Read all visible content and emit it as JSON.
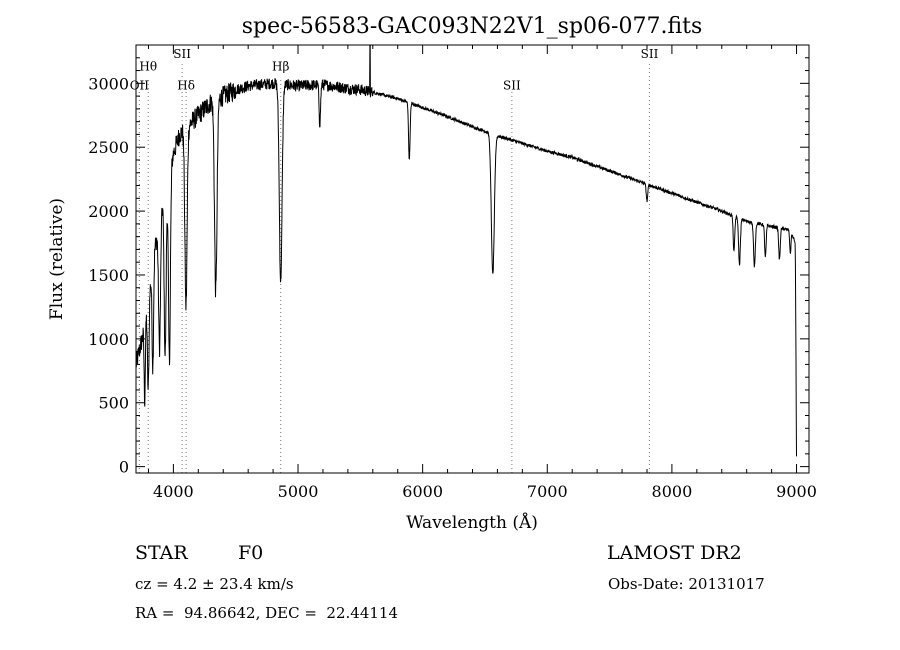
{
  "chart_data": {
    "type": "line",
    "title": "spec-56583-GAC093N22V1_sp06-077.fits",
    "xlabel": "Wavelength (Å)",
    "ylabel": "Flux (relative)",
    "xlim": [
      3700,
      9100
    ],
    "ylim": [
      -50,
      3300
    ],
    "xticks": [
      4000,
      5000,
      6000,
      7000,
      8000,
      9000
    ],
    "yticks": [
      0,
      500,
      1000,
      1500,
      2000,
      2500,
      3000
    ],
    "grid": false,
    "continuum": [
      [
        3700,
        800
      ],
      [
        3750,
        1000
      ],
      [
        3800,
        1300
      ],
      [
        3850,
        1700
      ],
      [
        3900,
        2000
      ],
      [
        3950,
        2250
      ],
      [
        4000,
        2450
      ],
      [
        4050,
        2600
      ],
      [
        4100,
        2650
      ],
      [
        4200,
        2750
      ],
      [
        4300,
        2850
      ],
      [
        4400,
        2900
      ],
      [
        4500,
        2950
      ],
      [
        4600,
        2980
      ],
      [
        4700,
        2990
      ],
      [
        4800,
        3000
      ],
      [
        5000,
        2980
      ],
      [
        5200,
        2990
      ],
      [
        5400,
        2960
      ],
      [
        5500,
        2950
      ],
      [
        5600,
        2930
      ],
      [
        5800,
        2880
      ],
      [
        6000,
        2810
      ],
      [
        6200,
        2740
      ],
      [
        6400,
        2660
      ],
      [
        6600,
        2590
      ],
      [
        6800,
        2530
      ],
      [
        7000,
        2470
      ],
      [
        7200,
        2420
      ],
      [
        7400,
        2350
      ],
      [
        7600,
        2280
      ],
      [
        7800,
        2210
      ],
      [
        8000,
        2140
      ],
      [
        8200,
        2070
      ],
      [
        8400,
        2000
      ],
      [
        8600,
        1920
      ],
      [
        8800,
        1880
      ],
      [
        8950,
        1850
      ],
      [
        8990,
        1750
      ],
      [
        9000,
        80
      ]
    ],
    "absorption_lines": [
      {
        "center": 3770,
        "depth": 600,
        "width": 5
      },
      {
        "center": 3798,
        "depth": 700,
        "width": 6
      },
      {
        "center": 3835,
        "depth": 800,
        "width": 6
      },
      {
        "center": 3889,
        "depth": 1000,
        "width": 8
      },
      {
        "center": 3934,
        "depth": 1300,
        "width": 8
      },
      {
        "center": 3968,
        "depth": 1500,
        "width": 8
      },
      {
        "center": 4101,
        "depth": 1400,
        "width": 9
      },
      {
        "center": 4340,
        "depth": 1500,
        "width": 10
      },
      {
        "center": 4861,
        "depth": 1550,
        "width": 11
      },
      {
        "center": 5175,
        "depth": 300,
        "width": 6
      },
      {
        "center": 5893,
        "depth": 450,
        "width": 6
      },
      {
        "center": 6563,
        "depth": 1100,
        "width": 12
      },
      {
        "center": 7800,
        "depth": 130,
        "width": 6
      },
      {
        "center": 8498,
        "depth": 280,
        "width": 6
      },
      {
        "center": 8542,
        "depth": 360,
        "width": 7
      },
      {
        "center": 8662,
        "depth": 340,
        "width": 7
      },
      {
        "center": 8750,
        "depth": 250,
        "width": 6
      },
      {
        "center": 8863,
        "depth": 250,
        "width": 6
      },
      {
        "center": 8950,
        "depth": 180,
        "width": 5
      }
    ],
    "spikes": [
      {
        "x": 5577,
        "y": 3300
      }
    ],
    "line_markers": [
      {
        "label": "Hθ",
        "x": 3798,
        "y": 3050,
        "label_y": 3100,
        "greek": true
      },
      {
        "label": "OII",
        "x": 3727,
        "y": 2950,
        "label_y": 2950
      },
      {
        "label": "SII",
        "x": 4070,
        "y": 3150,
        "label_y": 3200
      },
      {
        "label": "Hδ",
        "x": 4102,
        "y": 2950,
        "label_y": 2950,
        "greek": true
      },
      {
        "label": "Hβ",
        "x": 4861,
        "y": 3050,
        "label_y": 3100,
        "greek": true
      },
      {
        "label": "SII",
        "x": 6716,
        "y": 2950,
        "label_y": 2950
      },
      {
        "label": "SII",
        "x": 7820,
        "y": 3150,
        "label_y": 3200
      }
    ]
  },
  "info": {
    "class_label": "STAR",
    "subclass": "F0",
    "survey": "LAMOST DR2",
    "redshift": "cz = 4.2 ± 23.4 km/s",
    "obs_date": "Obs-Date: 20131017",
    "coords": "RA =  94.86642, DEC =  22.44114"
  }
}
